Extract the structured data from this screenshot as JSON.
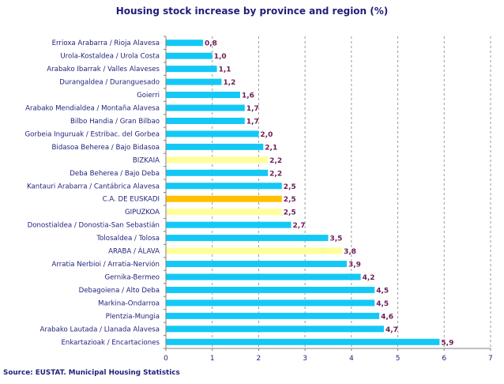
{
  "chart_data": {
    "type": "bar",
    "orientation": "horizontal",
    "title": "Housing stock increase by province and region (%)",
    "source": "Source: EUSTAT. Municipal Housing Statistics",
    "categories": [
      "Errioxa Arabarra  /  Rioja Alavesa",
      "Urola-Kostaldea  /  Urola Costa",
      "Arabako Ibarrak  /  Valles Alaveses",
      "Durangaldea  /  Duranguesado",
      "Goierri",
      "Arabako Mendialdea  /  Montaña Alavesa",
      "Bilbo Handia  /  Gran Bilbao",
      "Gorbeia Inguruak  /  Estribac. del Gorbea",
      "Bidasoa Beherea  /  Bajo Bidasoa",
      "BIZKAIA",
      "Deba Beherea  /  Bajo Deba",
      "Kantauri Arabarra  /  Cantábrica Alavesa",
      "C.A. DE EUSKADI",
      "GIPUZKOA",
      "Donostialdea  /  Donostia-San Sebastián",
      "Tolosaldea  /  Tolosa",
      "ARABA / ÁLAVA",
      "Arratia Nerbioi  /  Arratia-Nervión",
      "Gernika-Bermeo",
      "Debagoiena  /  Alto Deba",
      "Markina-Ondarroa",
      "Plentzia-Mungia",
      "Arabako Lautada  /  Llanada Alavesa",
      "Enkartazioak  /  Encartaciones"
    ],
    "values": [
      0.8,
      1.0,
      1.1,
      1.2,
      1.6,
      1.7,
      1.7,
      2.0,
      2.1,
      2.2,
      2.2,
      2.5,
      2.5,
      2.5,
      2.7,
      3.5,
      3.8,
      3.9,
      4.2,
      4.5,
      4.5,
      4.6,
      4.7,
      5.9
    ],
    "value_labels": [
      "0,8",
      "1,0",
      "1,1",
      "1,2",
      "1,6",
      "1,7",
      "1,7",
      "2,0",
      "2,1",
      "2,2",
      "2,2",
      "2,5",
      "2,5",
      "2,5",
      "2,7",
      "3,5",
      "3,8",
      "3,9",
      "4,2",
      "4,5",
      "4,5",
      "4,6",
      "4,7",
      "5,9"
    ],
    "bar_kinds": [
      "region",
      "region",
      "region",
      "region",
      "region",
      "region",
      "region",
      "region",
      "region",
      "province",
      "region",
      "region",
      "total",
      "province",
      "region",
      "region",
      "province",
      "region",
      "region",
      "region",
      "region",
      "region",
      "region",
      "region"
    ],
    "colors": {
      "region": "#14c8f5",
      "province": "#ffff99",
      "total": "#ffc000",
      "gridline": "#9a9a9a",
      "axis": "#808080"
    },
    "xlim": [
      0,
      7
    ],
    "x_ticks": [
      "0",
      "1",
      "2",
      "3",
      "4",
      "5",
      "6",
      "7"
    ],
    "grid": "vertical dashed",
    "legend": "none"
  }
}
